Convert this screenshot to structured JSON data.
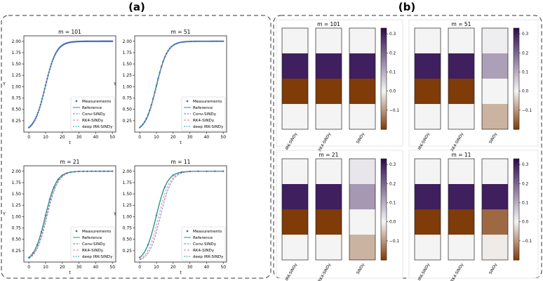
{
  "labels": {
    "panel_a": "(a)",
    "panel_b": "(b)"
  },
  "colors": {
    "measurements": "#4a6fb5",
    "reference": "#2f8f7c",
    "conv_sindy": "#6f7fd1",
    "rk4_sindy": "#e7738b",
    "deep_irk_sindy": "#1fa7a0",
    "heat_dark_purple": "#2d0a4e",
    "heat_dark_orange": "#7f3b08",
    "heat_neutral": "#f4f4f4"
  },
  "chart_data": {
    "panel_a": {
      "type": "line",
      "xlabel": "t",
      "ylabel": "Y",
      "xlim": [
        -3,
        52
      ],
      "ylim": [
        0.0,
        2.12
      ],
      "x_ticks": [
        "0",
        "10",
        "20",
        "30",
        "40",
        "50"
      ],
      "y_ticks": [
        "0.25",
        "0.50",
        "0.75",
        "1.00",
        "1.25",
        "1.50",
        "1.75",
        "2.00"
      ],
      "legend": [
        "Measurements",
        "Reference",
        "Conv-SINDy",
        "RK4-SINDy",
        "deep IRK-SINDy"
      ],
      "legend_placement": "lower-right",
      "subplots": [
        {
          "title": "m = 101",
          "m": 101,
          "model": {
            "y0": 0.1,
            "K": 2.0,
            "r": 0.3
          },
          "curve_shift": 0.0
        },
        {
          "title": "m = 51",
          "m": 51,
          "model": {
            "y0": 0.1,
            "K": 2.0,
            "r": 0.3
          },
          "curve_shift": 0.3
        },
        {
          "title": "m = 21",
          "m": 21,
          "model": {
            "y0": 0.1,
            "K": 2.0,
            "r": 0.3
          },
          "curve_shift": 1.0
        },
        {
          "title": "m = 11",
          "m": 11,
          "model": {
            "y0": 0.1,
            "K": 2.0,
            "r": 0.3
          },
          "curve_shift": 2.5
        }
      ]
    },
    "panel_b": {
      "type": "heatmap",
      "columns": [
        "IRK-SINDy",
        "RK4-SINDy",
        "SINDy"
      ],
      "rows": 4,
      "colorbar_range": [
        -0.2,
        0.33
      ],
      "colorbar_ticks": [
        "0.3",
        "0.2",
        "0.1",
        "0.0",
        "−0.1"
      ],
      "colorbar_tick_values": [
        0.3,
        0.2,
        0.1,
        0.0,
        -0.1
      ],
      "subplots": [
        {
          "title": "m = 101",
          "values": [
            [
              0.0,
              0.0,
              0.0
            ],
            [
              0.3,
              0.3,
              0.3
            ],
            [
              -0.2,
              -0.2,
              -0.2
            ],
            [
              0.0,
              0.0,
              0.0
            ]
          ]
        },
        {
          "title": "m = 51",
          "values": [
            [
              0.0,
              0.0,
              0.01
            ],
            [
              0.3,
              0.3,
              0.12
            ],
            [
              -0.2,
              -0.2,
              0.0
            ],
            [
              0.0,
              0.0,
              -0.07
            ]
          ]
        },
        {
          "title": "m = 21",
          "values": [
            [
              0.0,
              0.0,
              0.02
            ],
            [
              0.3,
              0.3,
              0.13
            ],
            [
              -0.2,
              -0.2,
              0.0
            ],
            [
              0.0,
              0.0,
              -0.07
            ]
          ]
        },
        {
          "title": "m = 11",
          "values": [
            [
              0.0,
              0.0,
              0.0
            ],
            [
              0.3,
              0.3,
              0.3
            ],
            [
              -0.2,
              -0.2,
              -0.15
            ],
            [
              0.0,
              0.0,
              -0.01
            ]
          ]
        }
      ]
    }
  }
}
